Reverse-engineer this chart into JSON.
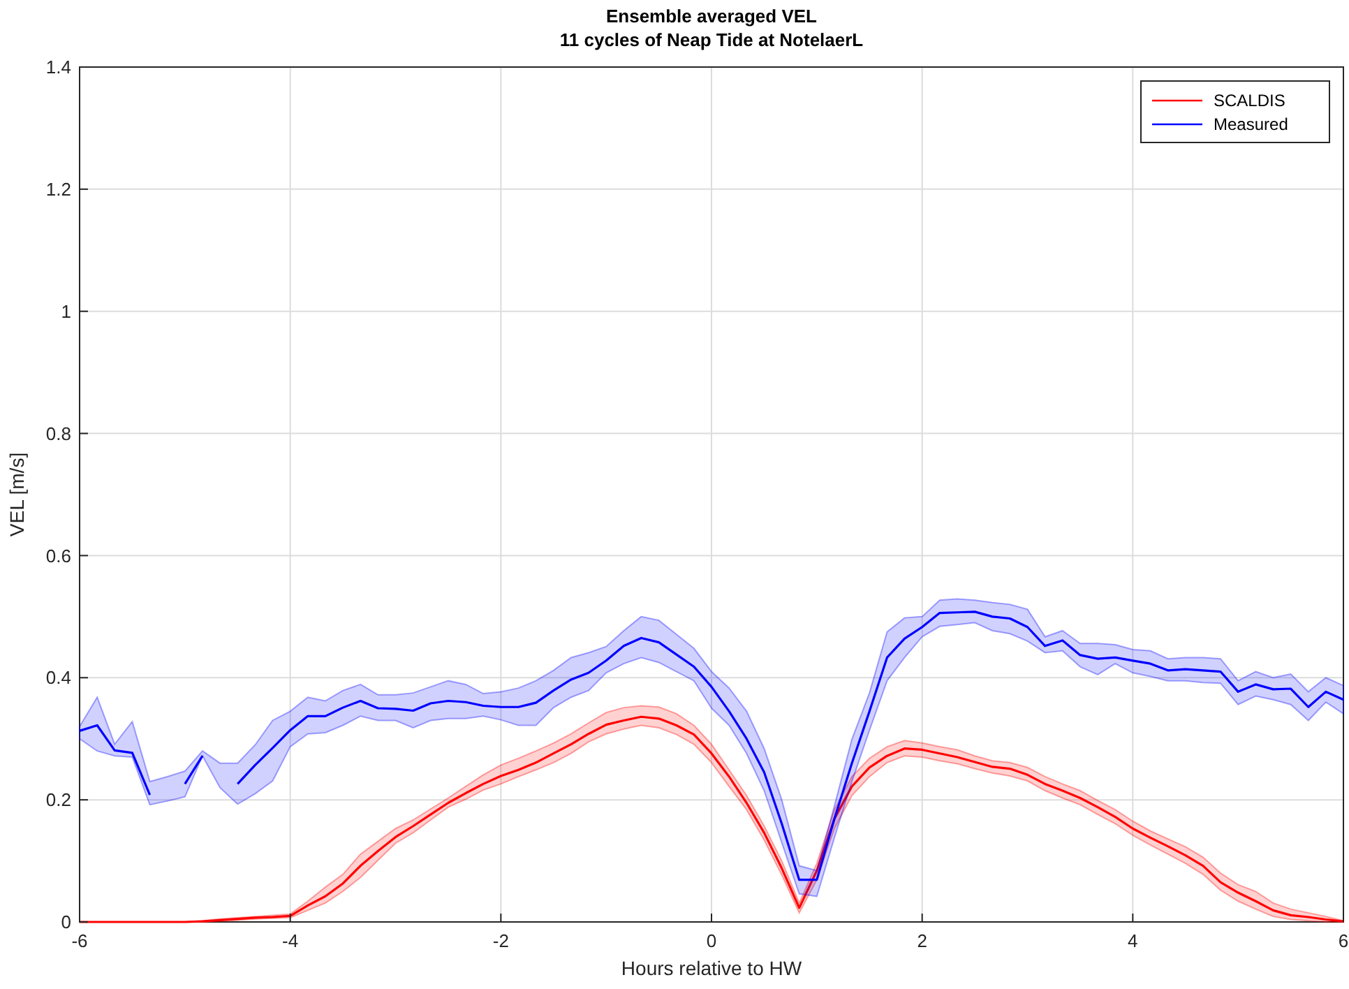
{
  "chart_data": {
    "type": "line",
    "title": "Ensemble averaged VEL",
    "subtitle": "11 cycles of Neap Tide at NotelaerL",
    "xlabel": "Hours relative to HW",
    "ylabel": "VEL [m/s]",
    "x": [
      -6,
      -5.833,
      -5.667,
      -5.5,
      -5.333,
      -5.167,
      -5,
      -4.833,
      -4.667,
      -4.5,
      -4.333,
      -4.167,
      -4,
      -3.833,
      -3.667,
      -3.5,
      -3.333,
      -3.167,
      -3,
      -2.833,
      -2.667,
      -2.5,
      -2.333,
      -2.167,
      -2,
      -1.833,
      -1.667,
      -1.5,
      -1.333,
      -1.167,
      -1,
      -0.833,
      -0.667,
      -0.5,
      -0.333,
      -0.167,
      0,
      0.167,
      0.333,
      0.5,
      0.667,
      0.833,
      1,
      1.167,
      1.333,
      1.5,
      1.667,
      1.833,
      2,
      2.167,
      2.333,
      2.5,
      2.667,
      2.833,
      3,
      3.167,
      3.333,
      3.5,
      3.667,
      3.833,
      4,
      4.167,
      4.333,
      4.5,
      4.667,
      4.833,
      5,
      5.167,
      5.333,
      5.5,
      5.667,
      5.833,
      6
    ],
    "series": [
      {
        "name": "SCALDIS",
        "color": "#ff0000",
        "values": [
          0,
          0,
          0,
          0,
          0,
          0,
          0,
          0.001,
          0.003,
          0.005,
          0.007,
          0.008,
          0.01,
          0.027,
          0.042,
          0.063,
          0.092,
          0.116,
          0.139,
          0.157,
          0.176,
          0.195,
          0.211,
          0.226,
          0.239,
          0.249,
          0.261,
          0.276,
          0.291,
          0.308,
          0.323,
          0.33,
          0.336,
          0.333,
          0.322,
          0.307,
          0.276,
          0.238,
          0.195,
          0.146,
          0.088,
          0.023,
          0.084,
          0.169,
          0.222,
          0.253,
          0.272,
          0.284,
          0.282,
          0.276,
          0.27,
          0.262,
          0.254,
          0.251,
          0.241,
          0.226,
          0.215,
          0.203,
          0.188,
          0.172,
          0.153,
          0.138,
          0.124,
          0.109,
          0.092,
          0.065,
          0.048,
          0.034,
          0.019,
          0.011,
          0.008,
          0.004,
          0.001
        ],
        "lower": [
          0,
          0,
          0,
          0,
          0,
          0,
          0,
          0,
          0.001,
          0.003,
          0.005,
          0.006,
          0.007,
          0.019,
          0.031,
          0.05,
          0.073,
          0.101,
          0.129,
          0.146,
          0.167,
          0.188,
          0.201,
          0.216,
          0.226,
          0.238,
          0.249,
          0.261,
          0.276,
          0.295,
          0.308,
          0.316,
          0.322,
          0.318,
          0.307,
          0.291,
          0.261,
          0.222,
          0.184,
          0.134,
          0.077,
          0.015,
          0.069,
          0.153,
          0.207,
          0.238,
          0.261,
          0.272,
          0.27,
          0.264,
          0.259,
          0.251,
          0.244,
          0.239,
          0.231,
          0.215,
          0.203,
          0.192,
          0.176,
          0.161,
          0.142,
          0.126,
          0.111,
          0.096,
          0.078,
          0.052,
          0.034,
          0.021,
          0.009,
          0.004,
          0.002,
          0,
          0
        ],
        "upper": [
          0,
          0,
          0,
          0,
          0,
          0,
          0,
          0.002,
          0.005,
          0.007,
          0.009,
          0.011,
          0.013,
          0.034,
          0.057,
          0.078,
          0.111,
          0.132,
          0.153,
          0.167,
          0.185,
          0.203,
          0.222,
          0.241,
          0.257,
          0.268,
          0.28,
          0.293,
          0.308,
          0.326,
          0.343,
          0.351,
          0.354,
          0.352,
          0.341,
          0.322,
          0.291,
          0.249,
          0.207,
          0.157,
          0.1,
          0.031,
          0.096,
          0.184,
          0.238,
          0.268,
          0.287,
          0.297,
          0.293,
          0.287,
          0.282,
          0.272,
          0.264,
          0.261,
          0.253,
          0.238,
          0.226,
          0.215,
          0.199,
          0.184,
          0.165,
          0.149,
          0.136,
          0.123,
          0.106,
          0.08,
          0.061,
          0.05,
          0.031,
          0.021,
          0.015,
          0.009,
          0.002
        ]
      },
      {
        "name": "Measured",
        "color": "#0000ff",
        "values": [
          0.313,
          0.322,
          0.281,
          0.277,
          0.208,
          null,
          0.226,
          0.272,
          null,
          0.226,
          0.257,
          0.285,
          0.314,
          0.337,
          0.337,
          0.351,
          0.362,
          0.35,
          0.349,
          0.346,
          0.358,
          0.362,
          0.36,
          0.354,
          0.352,
          0.352,
          0.359,
          0.379,
          0.397,
          0.408,
          0.428,
          0.452,
          0.465,
          0.458,
          0.438,
          0.418,
          0.385,
          0.345,
          0.3,
          0.245,
          0.161,
          0.069,
          0.069,
          0.169,
          0.26,
          0.345,
          0.433,
          0.464,
          0.483,
          0.506,
          0.507,
          0.508,
          0.5,
          0.497,
          0.483,
          0.452,
          0.461,
          0.437,
          0.431,
          0.433,
          0.428,
          0.423,
          0.412,
          0.414,
          0.412,
          0.41,
          0.377,
          0.389,
          0.381,
          0.382,
          0.352,
          0.377,
          0.364
        ],
        "lower": [
          0.3,
          0.28,
          0.272,
          0.27,
          0.192,
          0.198,
          0.205,
          0.272,
          0.22,
          0.193,
          0.21,
          0.231,
          0.287,
          0.308,
          0.31,
          0.322,
          0.337,
          0.33,
          0.33,
          0.318,
          0.33,
          0.333,
          0.333,
          0.337,
          0.331,
          0.322,
          0.322,
          0.351,
          0.368,
          0.379,
          0.408,
          0.423,
          0.433,
          0.425,
          0.41,
          0.395,
          0.35,
          0.322,
          0.276,
          0.215,
          0.13,
          0.046,
          0.042,
          0.138,
          0.23,
          0.314,
          0.395,
          0.433,
          0.467,
          0.484,
          0.487,
          0.49,
          0.477,
          0.472,
          0.46,
          0.441,
          0.444,
          0.418,
          0.405,
          0.423,
          0.408,
          0.402,
          0.395,
          0.395,
          0.392,
          0.391,
          0.356,
          0.37,
          0.364,
          0.356,
          0.33,
          0.36,
          0.341
        ],
        "upper": [
          0.32,
          0.368,
          0.291,
          0.328,
          0.23,
          0.238,
          0.247,
          0.28,
          0.26,
          0.26,
          0.29,
          0.33,
          0.345,
          0.368,
          0.362,
          0.379,
          0.389,
          0.372,
          0.372,
          0.375,
          0.385,
          0.395,
          0.389,
          0.374,
          0.377,
          0.383,
          0.395,
          0.412,
          0.433,
          0.441,
          0.451,
          0.477,
          0.5,
          0.494,
          0.471,
          0.448,
          0.41,
          0.383,
          0.345,
          0.284,
          0.2,
          0.092,
          0.084,
          0.19,
          0.299,
          0.375,
          0.475,
          0.498,
          0.5,
          0.527,
          0.529,
          0.527,
          0.523,
          0.52,
          0.512,
          0.467,
          0.477,
          0.456,
          0.456,
          0.454,
          0.446,
          0.444,
          0.431,
          0.433,
          0.433,
          0.431,
          0.395,
          0.41,
          0.4,
          0.406,
          0.377,
          0.4,
          0.387
        ]
      }
    ],
    "xlim": [
      -6,
      6
    ],
    "xticks": [
      -6,
      -4,
      -2,
      0,
      2,
      4,
      6
    ],
    "ylim": [
      0,
      1.4
    ],
    "yticks": [
      0,
      0.2,
      0.4,
      0.6,
      0.8,
      1,
      1.2,
      1.4
    ],
    "grid": true,
    "legend": "top right",
    "marker": "none",
    "line_style": "solid"
  }
}
